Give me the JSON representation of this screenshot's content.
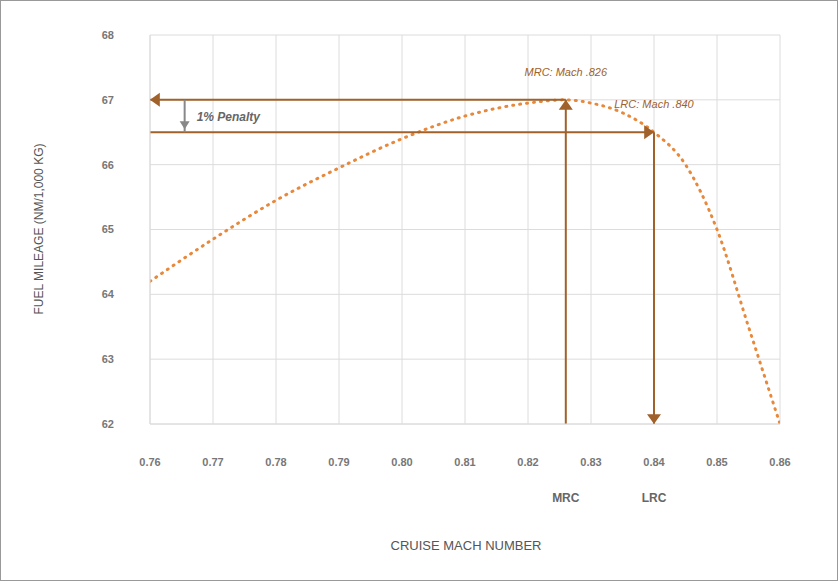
{
  "chart_data": {
    "type": "line",
    "x_label": "CRUISE MACH NUMBER",
    "y_label": "FUEL MILEAGE (NM/1,000 KG)",
    "x": [
      0.76,
      0.77,
      0.78,
      0.79,
      0.8,
      0.81,
      0.82,
      0.826,
      0.83,
      0.835,
      0.84,
      0.845,
      0.85,
      0.855,
      0.86
    ],
    "values": [
      64.2,
      64.85,
      65.45,
      65.95,
      66.4,
      66.75,
      66.95,
      67.0,
      66.95,
      66.8,
      66.5,
      66.0,
      65.0,
      63.5,
      62.0
    ],
    "color": "#e8883a",
    "line_style": "dotted",
    "xlim": [
      0.76,
      0.86
    ],
    "xticks": [
      0.76,
      0.77,
      0.78,
      0.79,
      {
        "value": 0.8,
        "label": "0.80"
      },
      0.81,
      0.82,
      0.83,
      0.84,
      0.85,
      0.86
    ],
    "ylim": [
      62,
      68
    ],
    "yticks": [
      62,
      63,
      64,
      65,
      66,
      67,
      68
    ],
    "grid": true,
    "annotations": [
      {
        "text": "MRC: Mach .826",
        "axis_label": "MRC",
        "x": 0.826,
        "y": 67.0
      },
      {
        "text": "LRC: Mach .840",
        "axis_label": "LRC",
        "x": 0.84,
        "y": 66.5
      }
    ],
    "penalty_label": "1% Penalty"
  }
}
